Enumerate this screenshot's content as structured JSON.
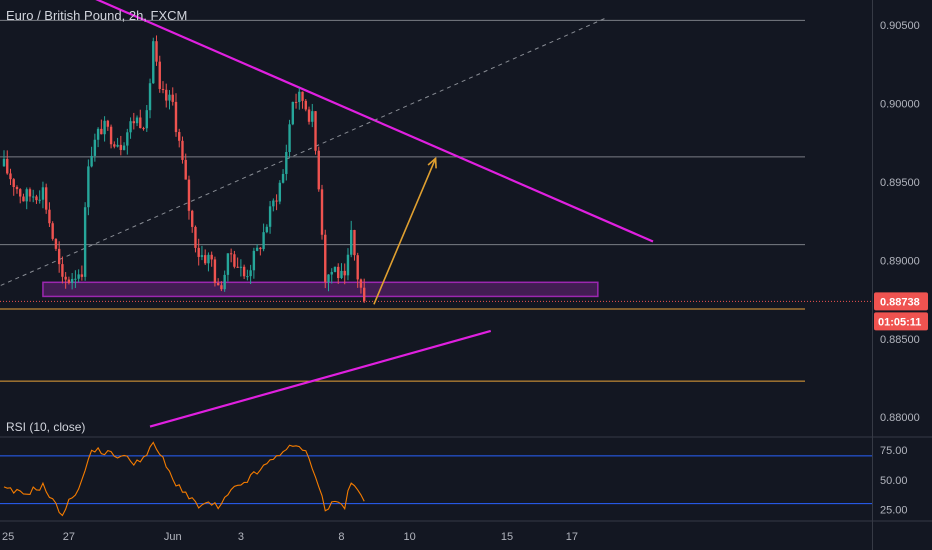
{
  "header": {
    "title": "Euro / British Pound, 2h, FXCM"
  },
  "rsi_panel": {
    "title": "RSI (10, close)"
  },
  "price_tag": {
    "price": "0.88738",
    "countdown": "01:05:11"
  },
  "colors": {
    "background": "#131722",
    "up": "#26a69a",
    "down": "#ef5350",
    "trendline": "#e020e0",
    "support_zone": "#9c27b0",
    "arrow": "#e0a030",
    "rsi_line": "#f57c00",
    "rsi_levels": "#2962ff",
    "level_orange": "#e8a33a"
  },
  "chart_data": [
    {
      "type": "candlestick",
      "title": "Euro / British Pound, 2h, FXCM",
      "ylim": [
        0.8788,
        0.9066
      ],
      "y_ticks": [
        0.905,
        0.9,
        0.895,
        0.89,
        0.885,
        0.88
      ],
      "y_tick_labels": [
        "0.90500",
        "0.90000",
        "0.89500",
        "0.89000",
        "0.88500",
        "0.88000"
      ],
      "x_ticks": [
        {
          "label": "25",
          "bar": -1
        },
        {
          "label": "27",
          "bar": 20
        },
        {
          "label": "Jun",
          "bar": 52
        },
        {
          "label": "3",
          "bar": 73
        },
        {
          "label": "8",
          "bar": 104
        },
        {
          "label": "10",
          "bar": 125
        },
        {
          "label": "15",
          "bar": 155
        },
        {
          "label": "17",
          "bar": 175
        }
      ],
      "anchor_closes": [
        [
          0,
          0.896
        ],
        [
          6,
          0.894
        ],
        [
          12,
          0.8945
        ],
        [
          16,
          0.8905
        ],
        [
          18,
          0.8885
        ],
        [
          24,
          0.8895
        ],
        [
          26,
          0.8965
        ],
        [
          30,
          0.8985
        ],
        [
          36,
          0.8975
        ],
        [
          40,
          0.899
        ],
        [
          44,
          0.899
        ],
        [
          46,
          0.904
        ],
        [
          48,
          0.9005
        ],
        [
          52,
          0.9
        ],
        [
          54,
          0.8975
        ],
        [
          58,
          0.892
        ],
        [
          60,
          0.8905
        ],
        [
          64,
          0.89
        ],
        [
          66,
          0.888
        ],
        [
          70,
          0.8905
        ],
        [
          74,
          0.889
        ],
        [
          78,
          0.8905
        ],
        [
          82,
          0.893
        ],
        [
          86,
          0.8955
        ],
        [
          89,
          0.9003
        ],
        [
          92,
          0.9003
        ],
        [
          95,
          0.899
        ],
        [
          97,
          0.895
        ],
        [
          99,
          0.889
        ],
        [
          102,
          0.8895
        ],
        [
          105,
          0.8885
        ],
        [
          107,
          0.8915
        ],
        [
          109,
          0.889
        ],
        [
          111,
          0.8874
        ]
      ],
      "horizontal_levels": [
        0.9053,
        0.8966,
        0.891
      ],
      "orange_levels": [
        0.8869,
        0.8823
      ],
      "support_zone": [
        0.8877,
        0.8886
      ],
      "dotted_last_price": 0.88738,
      "trendlines": [
        {
          "from": [
            -1,
            0.9093
          ],
          "to": [
            200,
            0.8912
          ]
        },
        {
          "from": [
            45,
            0.8794
          ],
          "to": [
            150,
            0.8855
          ]
        }
      ],
      "dashed_trendline": {
        "from": [
          -1,
          0.8884
        ],
        "to": [
          186,
          0.9055
        ]
      },
      "projection_arrow": {
        "from": [
          114,
          0.8872
        ],
        "to": [
          133,
          0.8965
        ]
      }
    },
    {
      "type": "line",
      "title": "RSI (10, close)",
      "ylim": [
        18,
        85
      ],
      "y_ticks": [
        75,
        50,
        25
      ],
      "y_tick_labels": [
        "75.00",
        "50.00",
        "25.00"
      ],
      "levels": [
        70,
        30
      ],
      "anchor_values": [
        [
          0,
          42
        ],
        [
          6,
          38
        ],
        [
          12,
          45
        ],
        [
          16,
          28
        ],
        [
          18,
          22
        ],
        [
          22,
          40
        ],
        [
          24,
          48
        ],
        [
          26,
          68
        ],
        [
          28,
          76
        ],
        [
          32,
          72
        ],
        [
          36,
          70
        ],
        [
          40,
          65
        ],
        [
          44,
          70
        ],
        [
          46,
          80
        ],
        [
          48,
          72
        ],
        [
          52,
          50
        ],
        [
          54,
          45
        ],
        [
          58,
          32
        ],
        [
          60,
          28
        ],
        [
          64,
          30
        ],
        [
          66,
          26
        ],
        [
          70,
          40
        ],
        [
          74,
          48
        ],
        [
          78,
          56
        ],
        [
          82,
          65
        ],
        [
          86,
          75
        ],
        [
          89,
          77
        ],
        [
          92,
          77
        ],
        [
          95,
          62
        ],
        [
          97,
          45
        ],
        [
          99,
          25
        ],
        [
          102,
          32
        ],
        [
          105,
          28
        ],
        [
          107,
          48
        ],
        [
          109,
          40
        ],
        [
          111,
          32
        ]
      ]
    }
  ]
}
